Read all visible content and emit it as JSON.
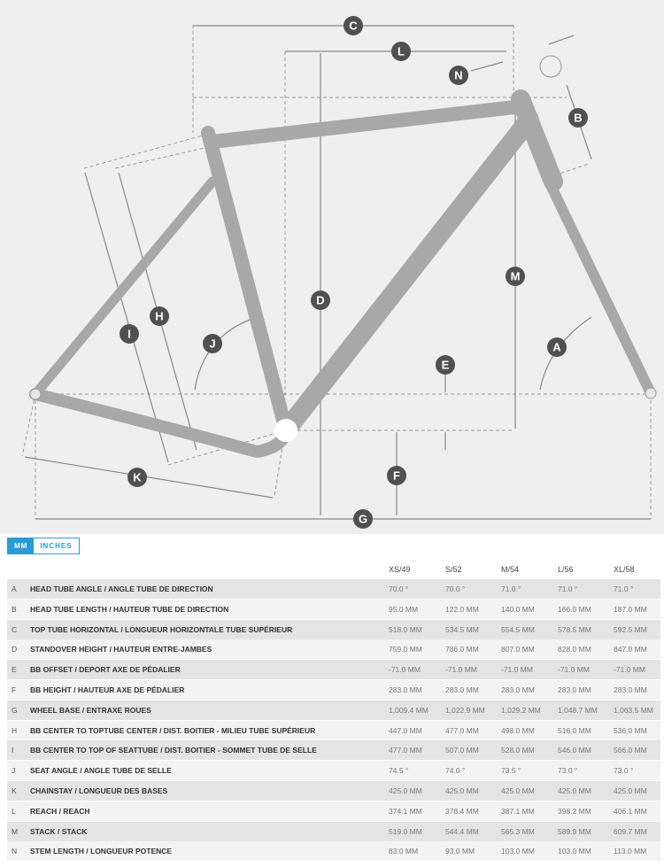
{
  "diagram": {
    "labels": [
      "A",
      "B",
      "C",
      "D",
      "E",
      "F",
      "G",
      "H",
      "I",
      "J",
      "K",
      "L",
      "M",
      "N"
    ]
  },
  "units": {
    "mm": "MM",
    "inches": "INCHES",
    "active": "MM"
  },
  "sizes": [
    "XS/49",
    "S/52",
    "M/54",
    "L/56",
    "XL/58"
  ],
  "rows": [
    {
      "letter": "A",
      "label": "HEAD TUBE ANGLE / ANGLE TUBE DE DIRECTION",
      "values": [
        "70.0 °",
        "70.0 °",
        "71.0 °",
        "71.0 °",
        "71.0 °"
      ]
    },
    {
      "letter": "B",
      "label": "HEAD TUBE LENGTH / HAUTEUR TUBE DE DIRECTION",
      "values": [
        "95.0 MM",
        "122.0 MM",
        "140.0 MM",
        "166.0 MM",
        "187.0 MM"
      ]
    },
    {
      "letter": "C",
      "label": "TOP TUBE HORIZONTAL / LONGUEUR HORIZONTALE TUBE SUPÉRIEUR",
      "values": [
        "518.0 MM",
        "534.5 MM",
        "554.5 MM",
        "578.5 MM",
        "592.5 MM"
      ]
    },
    {
      "letter": "D",
      "label": "STANDOVER HEIGHT / HAUTEUR ENTRE-JAMBES",
      "values": [
        "759.0 MM",
        "786.0 MM",
        "807.0 MM",
        "828.0 MM",
        "847.0 MM"
      ]
    },
    {
      "letter": "E",
      "label": "BB OFFSET / DEPORT AXE DE PÉDALIER",
      "values": [
        "-71.0 MM",
        "-71.0 MM",
        "-71.0 MM",
        "-71.0 MM",
        "-71.0 MM"
      ]
    },
    {
      "letter": "F",
      "label": "BB HEIGHT / HAUTEUR AXE DE PÉDALIER",
      "values": [
        "283.0 MM",
        "283.0 MM",
        "283.0 MM",
        "283.0 MM",
        "283.0 MM"
      ]
    },
    {
      "letter": "G",
      "label": "WHEEL BASE / ENTRAXE ROUES",
      "values": [
        "1,009.4 MM",
        "1,022.9 MM",
        "1,029.2 MM",
        "1,048.7 MM",
        "1,063.5 MM"
      ]
    },
    {
      "letter": "H",
      "label": "BB CENTER TO TOPTUBE CENTER / DIST. BOITIER - MILIEU TUBE SUPÉRIEUR",
      "values": [
        "447.0 MM",
        "477.0 MM",
        "498.0 MM",
        "516.0 MM",
        "536.0 MM"
      ]
    },
    {
      "letter": "I",
      "label": "BB CENTER TO TOP OF SEATTUBE / DIST. BOITIER - SOMMET TUBE DE SELLE",
      "values": [
        "477.0 MM",
        "507.0 MM",
        "528.0 MM",
        "546.0 MM",
        "566.0 MM"
      ]
    },
    {
      "letter": "J",
      "label": "SEAT ANGLE / ANGLE TUBE DE SELLE",
      "values": [
        "74.5 °",
        "74.0 °",
        "73.5 °",
        "73.0 °",
        "73.0 °"
      ]
    },
    {
      "letter": "K",
      "label": "CHAINSTAY / LONGUEUR DES BASES",
      "values": [
        "425.0 MM",
        "425.0 MM",
        "425.0 MM",
        "425.0 MM",
        "425.0 MM"
      ]
    },
    {
      "letter": "L",
      "label": "REACH / REACH",
      "values": [
        "374.1 MM",
        "378.4 MM",
        "387.1 MM",
        "398.2 MM",
        "406.1 MM"
      ]
    },
    {
      "letter": "M",
      "label": "STACK / STACK",
      "values": [
        "519.0 MM",
        "544.4 MM",
        "565.3 MM",
        "589.9 MM",
        "609.7 MM"
      ]
    },
    {
      "letter": "N",
      "label": "STEM LENGTH / LONGUEUR POTENCE",
      "values": [
        "83.0 MM",
        "93.0 MM",
        "103.0 MM",
        "103.0 MM",
        "113.0 MM"
      ]
    }
  ]
}
